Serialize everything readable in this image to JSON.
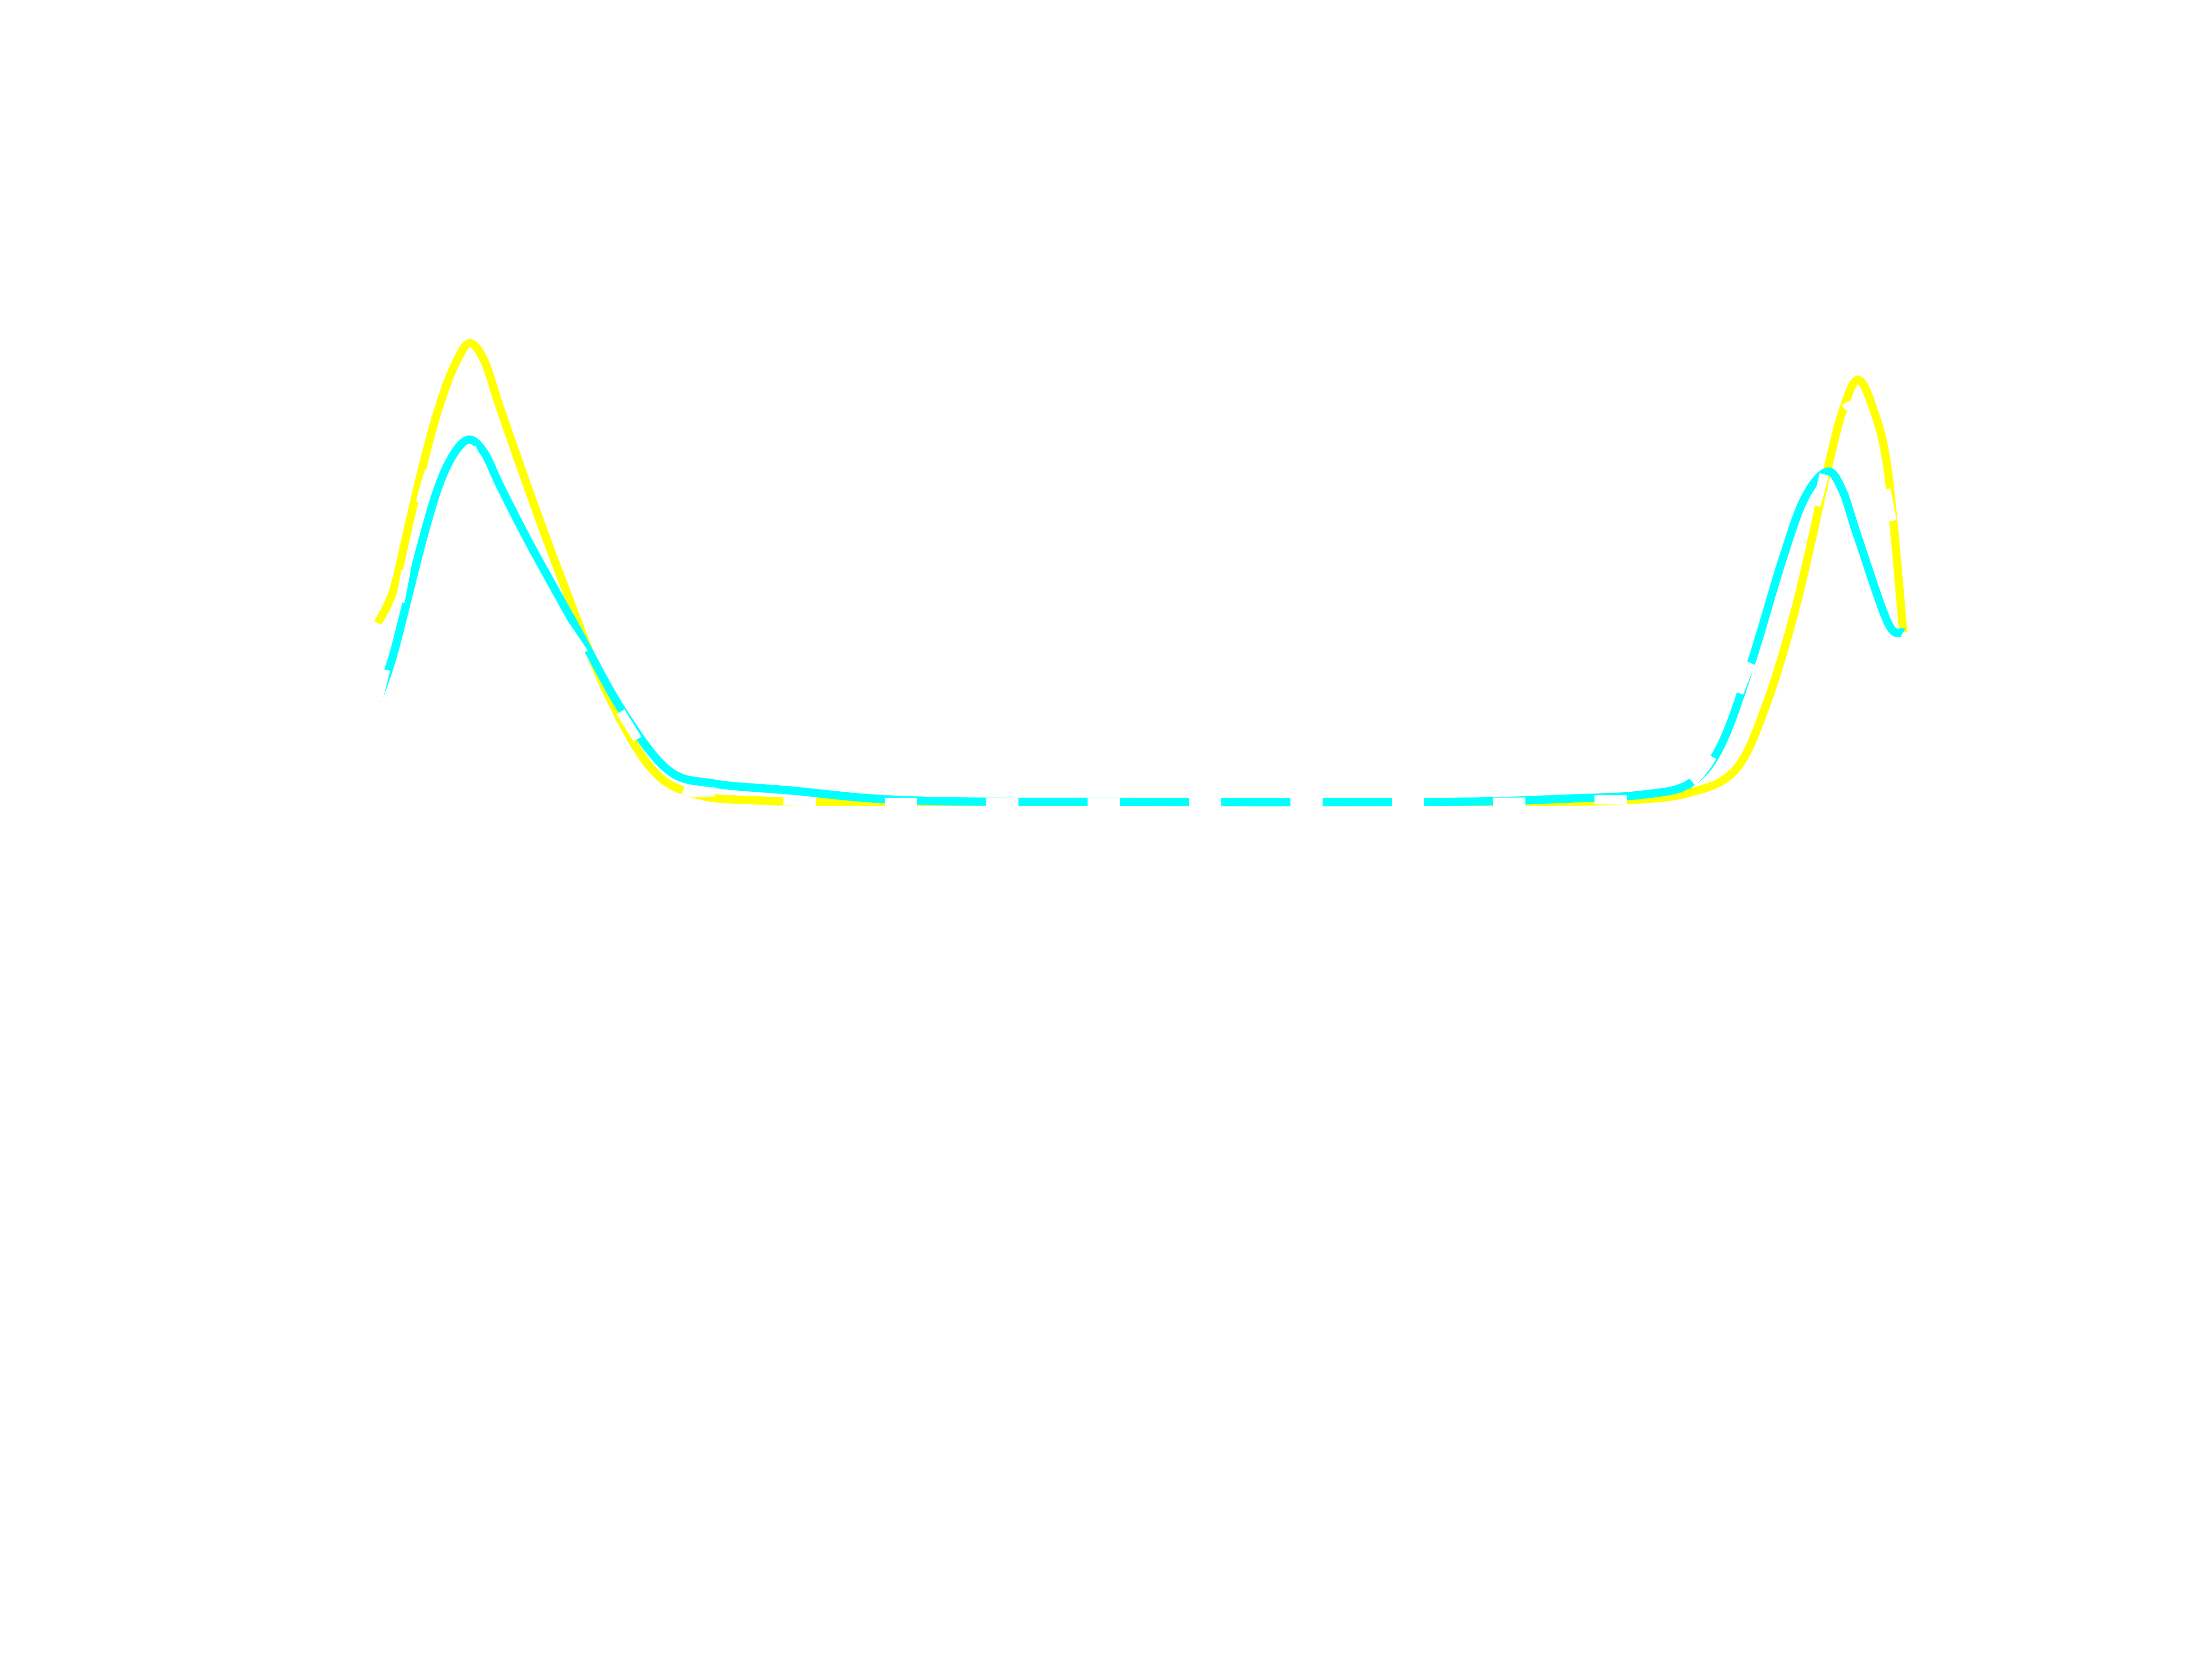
{
  "chart_data": {
    "type": "line",
    "title": "",
    "xlabel": "",
    "ylabel": "",
    "axes_visible": false,
    "grid": false,
    "legend": "none",
    "xlim": [
      0,
      100
    ],
    "ylim": [
      0,
      1
    ],
    "series": [
      {
        "color": "#ffff00",
        "style": "solid",
        "points": [
          [
            0,
            0.39
          ],
          [
            1,
            0.46
          ],
          [
            2,
            0.6
          ],
          [
            3,
            0.74
          ],
          [
            4,
            0.86
          ],
          [
            5,
            0.95
          ],
          [
            6,
            1.0
          ],
          [
            7,
            0.96
          ],
          [
            8,
            0.86
          ],
          [
            10,
            0.67
          ],
          [
            12,
            0.49
          ],
          [
            15,
            0.24
          ],
          [
            18,
            0.07
          ],
          [
            21,
            0.015
          ],
          [
            25,
            0.003
          ],
          [
            30,
            0.0
          ],
          [
            50,
            0.0
          ],
          [
            75,
            0.0
          ],
          [
            82,
            0.004
          ],
          [
            86,
            0.02
          ],
          [
            89,
            0.07
          ],
          [
            91,
            0.21
          ],
          [
            93,
            0.43
          ],
          [
            95,
            0.72
          ],
          [
            96,
            0.85
          ],
          [
            97,
            0.92
          ],
          [
            98,
            0.86
          ],
          [
            99,
            0.72
          ],
          [
            100,
            0.37
          ]
        ]
      },
      {
        "color": "#00ffff",
        "style": "solid",
        "points": [
          [
            0,
            0.22
          ],
          [
            1,
            0.32
          ],
          [
            2,
            0.45
          ],
          [
            3,
            0.58
          ],
          [
            4,
            0.69
          ],
          [
            5,
            0.76
          ],
          [
            6,
            0.79
          ],
          [
            7,
            0.76
          ],
          [
            8,
            0.69
          ],
          [
            10,
            0.56
          ],
          [
            13,
            0.38
          ],
          [
            16,
            0.2
          ],
          [
            19,
            0.07
          ],
          [
            22,
            0.04
          ],
          [
            27,
            0.025
          ],
          [
            35,
            0.003
          ],
          [
            50,
            0.0
          ],
          [
            70,
            0.0
          ],
          [
            78,
            0.007
          ],
          [
            83,
            0.016
          ],
          [
            86,
            0.04
          ],
          [
            88,
            0.12
          ],
          [
            90,
            0.3
          ],
          [
            92,
            0.52
          ],
          [
            93.5,
            0.66
          ],
          [
            95,
            0.72
          ],
          [
            96,
            0.68
          ],
          [
            97,
            0.58
          ],
          [
            99,
            0.39
          ],
          [
            100,
            0.37
          ]
        ]
      }
    ],
    "overlay": {
      "color": "#ffffff",
      "style": "dashed",
      "points": [
        [
          0,
          0.22
        ],
        [
          1,
          0.36
        ],
        [
          2,
          0.53
        ],
        [
          3,
          0.68
        ],
        [
          4,
          0.77
        ],
        [
          5,
          0.8
        ],
        [
          6,
          0.78
        ],
        [
          7,
          0.7
        ],
        [
          8,
          0.62
        ],
        [
          10,
          0.5
        ],
        [
          14,
          0.3
        ],
        [
          19,
          0.05
        ],
        [
          23,
          0.02
        ],
        [
          30,
          0.0
        ],
        [
          66,
          0.0
        ],
        [
          78,
          0.003
        ],
        [
          86,
          0.04
        ],
        [
          90,
          0.3
        ],
        [
          94,
          0.62
        ],
        [
          96,
          0.85
        ],
        [
          98,
          0.8
        ],
        [
          100,
          0.48
        ]
      ]
    }
  }
}
